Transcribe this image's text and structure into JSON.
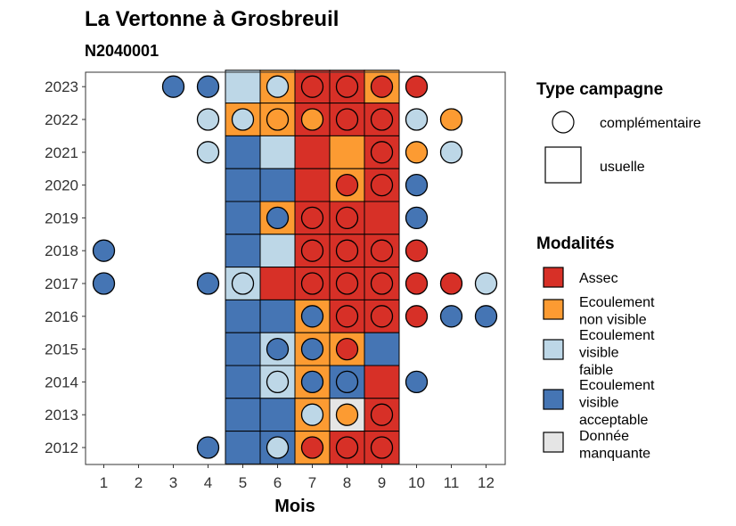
{
  "chart_data": {
    "type": "heatmap",
    "title": "La Vertonne à Grosbreuil",
    "subtitle": "N2040001",
    "xlabel": "Mois",
    "x_ticks": [
      1,
      2,
      3,
      4,
      5,
      6,
      7,
      8,
      9,
      10,
      11,
      12
    ],
    "years": [
      2012,
      2013,
      2014,
      2015,
      2016,
      2017,
      2018,
      2019,
      2020,
      2021,
      2022,
      2023
    ],
    "colors": {
      "assec": "#d73027",
      "ecoulement_non_visible": "#fc9b32",
      "ecoulement_visible_faible": "#bdd7e7",
      "ecoulement_visible_acceptable": "#4575b4",
      "donnee_manquante": "#e5e5e5"
    },
    "legend_type": {
      "title": "Type campagne",
      "items": [
        "complémentaire",
        "usuelle"
      ]
    },
    "legend_modalites": {
      "title": "Modalités",
      "items": [
        {
          "key": "assec",
          "lines": [
            "Assec"
          ]
        },
        {
          "key": "ecoulement_non_visible",
          "lines": [
            "Ecoulement",
            "non visible"
          ]
        },
        {
          "key": "ecoulement_visible_faible",
          "lines": [
            "Ecoulement",
            "visible",
            "faible"
          ]
        },
        {
          "key": "ecoulement_visible_acceptable",
          "lines": [
            "Ecoulement",
            "visible",
            "acceptable"
          ]
        },
        {
          "key": "donnee_manquante",
          "lines": [
            "Donnée",
            "manquante"
          ]
        }
      ]
    },
    "usuelle": [
      {
        "year": 2023,
        "months": {
          "5": "ecoulement_visible_faible",
          "6": "ecoulement_non_visible",
          "7": "assec",
          "8": "assec",
          "9": "ecoulement_non_visible"
        }
      },
      {
        "year": 2022,
        "months": {
          "5": "ecoulement_non_visible",
          "6": "ecoulement_non_visible",
          "7": "assec",
          "8": "assec",
          "9": "assec"
        }
      },
      {
        "year": 2021,
        "months": {
          "5": "ecoulement_visible_acceptable",
          "6": "ecoulement_visible_faible",
          "7": "assec",
          "8": "ecoulement_non_visible",
          "9": "assec"
        }
      },
      {
        "year": 2020,
        "months": {
          "5": "ecoulement_visible_acceptable",
          "6": "ecoulement_visible_acceptable",
          "7": "assec",
          "8": "ecoulement_non_visible",
          "9": "assec"
        }
      },
      {
        "year": 2019,
        "months": {
          "5": "ecoulement_visible_acceptable",
          "6": "ecoulement_non_visible",
          "7": "assec",
          "8": "assec",
          "9": "assec"
        }
      },
      {
        "year": 2018,
        "months": {
          "5": "ecoulement_visible_acceptable",
          "6": "ecoulement_visible_faible",
          "7": "assec",
          "8": "assec",
          "9": "assec"
        }
      },
      {
        "year": 2017,
        "months": {
          "5": "ecoulement_visible_faible",
          "6": "assec",
          "7": "assec",
          "8": "assec",
          "9": "assec"
        }
      },
      {
        "year": 2016,
        "months": {
          "5": "ecoulement_visible_acceptable",
          "6": "ecoulement_visible_acceptable",
          "7": "ecoulement_non_visible",
          "8": "assec",
          "9": "assec"
        }
      },
      {
        "year": 2015,
        "months": {
          "5": "ecoulement_visible_acceptable",
          "6": "ecoulement_visible_faible",
          "7": "ecoulement_non_visible",
          "8": "ecoulement_non_visible",
          "9": "ecoulement_visible_acceptable"
        }
      },
      {
        "year": 2014,
        "months": {
          "5": "ecoulement_visible_acceptable",
          "6": "ecoulement_visible_faible",
          "7": "ecoulement_non_visible",
          "8": "ecoulement_visible_acceptable",
          "9": "assec"
        }
      },
      {
        "year": 2013,
        "months": {
          "5": "ecoulement_visible_acceptable",
          "6": "ecoulement_visible_acceptable",
          "7": "ecoulement_non_visible",
          "8": "donnee_manquante",
          "9": "assec"
        }
      },
      {
        "year": 2012,
        "months": {
          "5": "ecoulement_visible_acceptable",
          "6": "ecoulement_visible_acceptable",
          "7": "ecoulement_non_visible",
          "8": "assec",
          "9": "assec"
        }
      }
    ],
    "complementaire": [
      {
        "year": 2023,
        "months": {
          "3": "ecoulement_visible_acceptable",
          "4": "ecoulement_visible_acceptable",
          "6": "ecoulement_visible_faible",
          "7": "assec",
          "8": "assec",
          "9": "assec",
          "10": "assec"
        }
      },
      {
        "year": 2022,
        "months": {
          "4": "ecoulement_visible_faible",
          "5": "ecoulement_visible_faible",
          "6": "ecoulement_non_visible",
          "7": "ecoulement_non_visible",
          "8": "assec",
          "9": "assec",
          "10": "ecoulement_visible_faible",
          "11": "ecoulement_non_visible"
        }
      },
      {
        "year": 2021,
        "months": {
          "4": "ecoulement_visible_faible",
          "9": "assec",
          "10": "ecoulement_non_visible",
          "11": "ecoulement_visible_faible"
        }
      },
      {
        "year": 2020,
        "months": {
          "8": "assec",
          "9": "assec",
          "10": "ecoulement_visible_acceptable"
        }
      },
      {
        "year": 2019,
        "months": {
          "6": "ecoulement_visible_acceptable",
          "7": "assec",
          "8": "assec",
          "10": "ecoulement_visible_acceptable"
        }
      },
      {
        "year": 2018,
        "months": {
          "1": "ecoulement_visible_acceptable",
          "7": "assec",
          "8": "assec",
          "9": "assec",
          "10": "assec"
        }
      },
      {
        "year": 2017,
        "months": {
          "1": "ecoulement_visible_acceptable",
          "4": "ecoulement_visible_acceptable",
          "5": "ecoulement_visible_faible",
          "7": "assec",
          "8": "assec",
          "9": "assec",
          "10": "assec",
          "11": "assec",
          "12": "ecoulement_visible_faible"
        }
      },
      {
        "year": 2016,
        "months": {
          "7": "ecoulement_visible_acceptable",
          "8": "assec",
          "9": "assec",
          "10": "assec",
          "11": "ecoulement_visible_acceptable",
          "12": "ecoulement_visible_acceptable"
        }
      },
      {
        "year": 2015,
        "months": {
          "6": "ecoulement_visible_acceptable",
          "7": "ecoulement_visible_acceptable",
          "8": "assec"
        }
      },
      {
        "year": 2014,
        "months": {
          "6": "ecoulement_visible_faible",
          "7": "ecoulement_visible_acceptable",
          "8": "ecoulement_visible_acceptable",
          "10": "ecoulement_visible_acceptable"
        }
      },
      {
        "year": 2013,
        "months": {
          "7": "ecoulement_visible_faible",
          "8": "ecoulement_non_visible",
          "9": "assec"
        }
      },
      {
        "year": 2012,
        "months": {
          "4": "ecoulement_visible_acceptable",
          "6": "ecoulement_visible_faible",
          "7": "assec",
          "8": "assec",
          "9": "assec"
        }
      }
    ]
  }
}
